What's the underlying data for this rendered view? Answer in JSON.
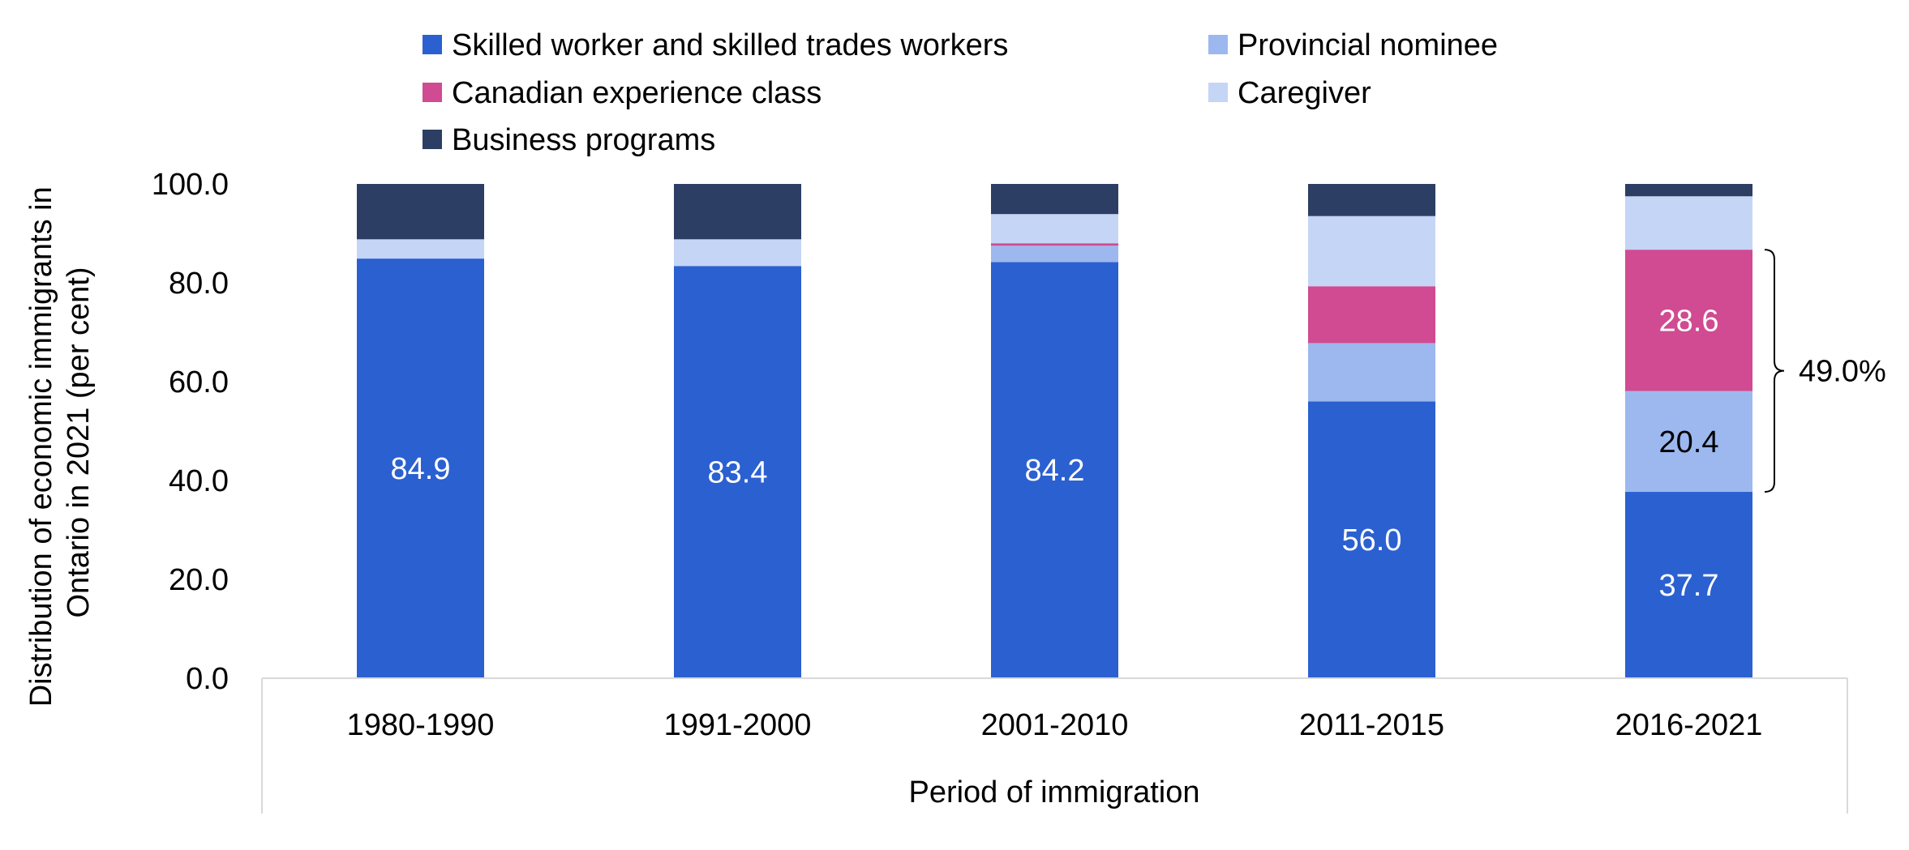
{
  "chart_data": {
    "type": "bar",
    "stacked": true,
    "categories": [
      "1980-1990",
      "1991-2000",
      "2001-2010",
      "2011-2015",
      "2016-2021"
    ],
    "series": [
      {
        "name": "Skilled worker and skilled trades workers",
        "color": "#2b60d0",
        "values": [
          84.9,
          83.4,
          84.2,
          56.0,
          37.7
        ]
      },
      {
        "name": "Provincial nominee",
        "color": "#9db8ef",
        "values": [
          0.0,
          0.0,
          3.3,
          11.8,
          20.4
        ]
      },
      {
        "name": "Canadian experience class",
        "color": "#d04b91",
        "values": [
          0.0,
          0.0,
          0.5,
          11.5,
          28.6
        ]
      },
      {
        "name": "Caregiver",
        "color": "#c5d5f6",
        "values": [
          3.9,
          5.4,
          5.9,
          14.2,
          10.8
        ]
      },
      {
        "name": "Business programs",
        "color": "#2c3e64",
        "values": [
          11.2,
          11.2,
          6.1,
          6.5,
          2.5
        ]
      }
    ],
    "data_labels": [
      {
        "series": 0,
        "category": 0,
        "text": "84.9",
        "color": "#ffffff"
      },
      {
        "series": 0,
        "category": 1,
        "text": "83.4",
        "color": "#ffffff"
      },
      {
        "series": 0,
        "category": 2,
        "text": "84.2",
        "color": "#ffffff"
      },
      {
        "series": 0,
        "category": 3,
        "text": "56.0",
        "color": "#ffffff"
      },
      {
        "series": 0,
        "category": 4,
        "text": "37.7",
        "color": "#ffffff"
      },
      {
        "series": 1,
        "category": 4,
        "text": "20.4",
        "color": "#000000"
      },
      {
        "series": 2,
        "category": 4,
        "text": "28.6",
        "color": "#ffffff"
      }
    ],
    "annotation": {
      "text": "49.0%",
      "category": 4,
      "from": 37.7,
      "to": 86.7
    },
    "xlabel": "Period of immigration",
    "ylabel_lines": [
      "Distribution of economic immigrants in",
      "Ontario in 2021 (per cent)"
    ],
    "ylim": [
      0,
      100
    ],
    "yticks": [
      "0.0",
      "20.0",
      "40.0",
      "60.0",
      "80.0",
      "100.0"
    ],
    "ytick_values": [
      0,
      20,
      40,
      60,
      80,
      100
    ],
    "grid": false,
    "legend_position": "top"
  }
}
